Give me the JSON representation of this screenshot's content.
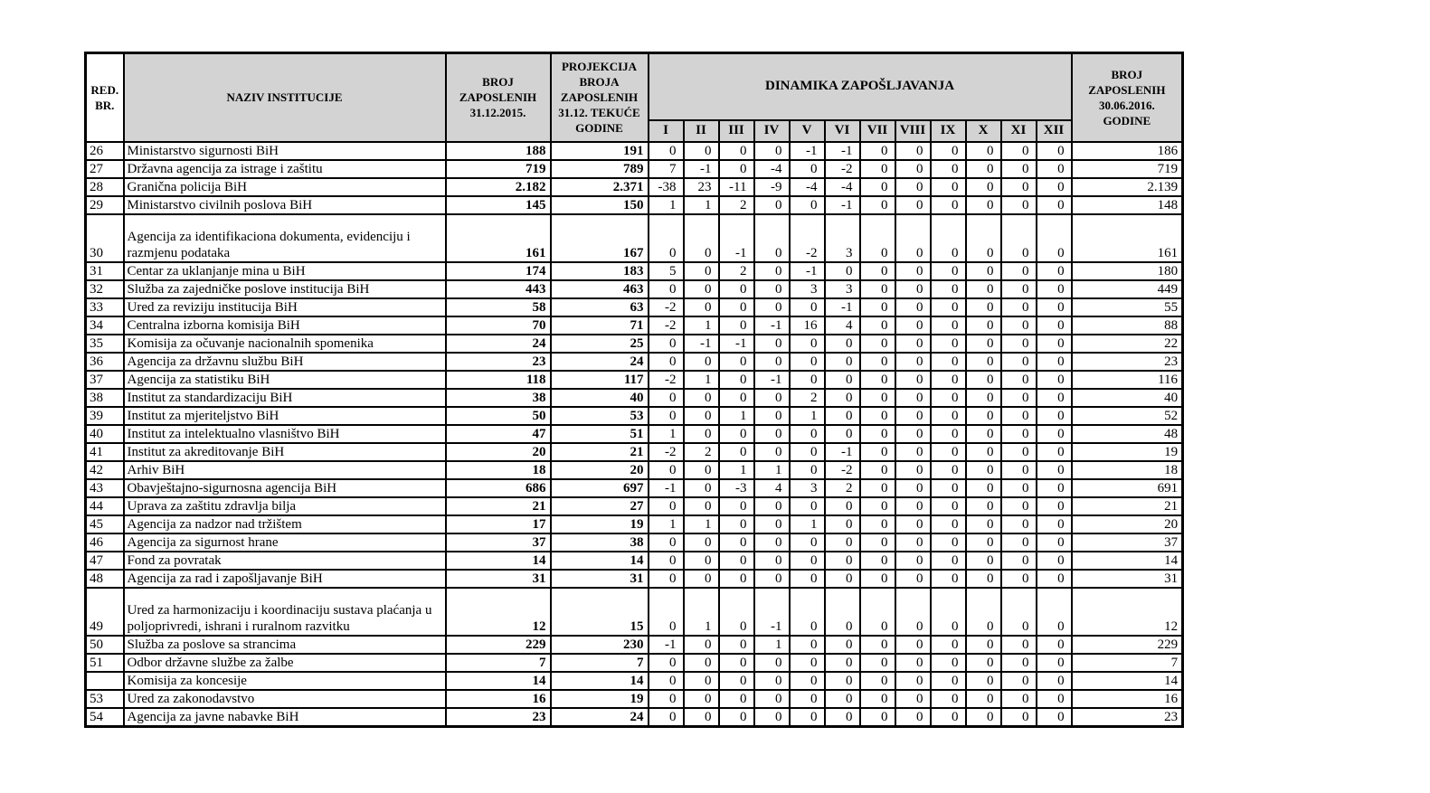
{
  "table": {
    "headers": {
      "red_br": "RED.\nBR.",
      "naziv": "NAZIV INSTITUCIJE",
      "broj_zaposlenih_2015": "BROJ\nZAPOSLENIH\n31.12.2015.",
      "projekcija": "PROJEKCIJA\nBROJA\nZAPOSLENIH\n31.12. TEKUĆE\nGODINE",
      "dinamika": "DINAMIKA ZAPOŠLJAVANJA",
      "months": [
        "I",
        "II",
        "III",
        "IV",
        "V",
        "VI",
        "VII",
        "VIII",
        "IX",
        "X",
        "XI",
        "XII"
      ],
      "broj_zaposlenih_2016": "BROJ\nZAPOSLENIH\n30.06.2016.\nGODINE"
    },
    "rows": [
      {
        "br": "26",
        "naziv": "Ministarstvo sigurnosti BiH",
        "zaposleni_2015": "188",
        "projekcija": "191",
        "mjeseci": [
          "0",
          "0",
          "0",
          "0",
          "-1",
          "-1",
          "0",
          "0",
          "0",
          "0",
          "0",
          "0"
        ],
        "zaposleni_3006": "186"
      },
      {
        "br": "27",
        "naziv": "Državna agencija za istrage i zaštitu",
        "zaposleni_2015": "719",
        "projekcija": "789",
        "mjeseci": [
          "7",
          "-1",
          "0",
          "-4",
          "0",
          "-2",
          "0",
          "0",
          "0",
          "0",
          "0",
          "0"
        ],
        "zaposleni_3006": "719"
      },
      {
        "br": "28",
        "naziv": "Granična policija BiH",
        "zaposleni_2015": "2.182",
        "projekcija": "2.371",
        "mjeseci": [
          "-38",
          "23",
          "-11",
          "-9",
          "-4",
          "-4",
          "0",
          "0",
          "0",
          "0",
          "0",
          "0"
        ],
        "zaposleni_3006": "2.139"
      },
      {
        "br": "29",
        "naziv": "Ministarstvo civilnih poslova BiH",
        "zaposleni_2015": "145",
        "projekcija": "150",
        "mjeseci": [
          "1",
          "1",
          "2",
          "0",
          "0",
          "-1",
          "0",
          "0",
          "0",
          "0",
          "0",
          "0"
        ],
        "zaposleni_3006": "148"
      },
      {
        "br": "30",
        "naziv": "Agencija za identifikaciona dokumenta, evidenciju i razmjenu podataka",
        "zaposleni_2015": "161",
        "projekcija": "167",
        "mjeseci": [
          "0",
          "0",
          "-1",
          "0",
          "-2",
          "3",
          "0",
          "0",
          "0",
          "0",
          "0",
          "0"
        ],
        "zaposleni_3006": "161"
      },
      {
        "br": "31",
        "naziv": "Centar za uklanjanje mina u BiH",
        "zaposleni_2015": "174",
        "projekcija": "183",
        "mjeseci": [
          "5",
          "0",
          "2",
          "0",
          "-1",
          "0",
          "0",
          "0",
          "0",
          "0",
          "0",
          "0"
        ],
        "zaposleni_3006": "180"
      },
      {
        "br": "32",
        "naziv": "Služba za zajedničke poslove institucija BiH",
        "zaposleni_2015": "443",
        "projekcija": "463",
        "mjeseci": [
          "0",
          "0",
          "0",
          "0",
          "3",
          "3",
          "0",
          "0",
          "0",
          "0",
          "0",
          "0"
        ],
        "zaposleni_3006": "449"
      },
      {
        "br": "33",
        "naziv": "Ured za reviziju institucija BiH",
        "zaposleni_2015": "58",
        "projekcija": "63",
        "mjeseci": [
          "-2",
          "0",
          "0",
          "0",
          "0",
          "-1",
          "0",
          "0",
          "0",
          "0",
          "0",
          "0"
        ],
        "zaposleni_3006": "55"
      },
      {
        "br": "34",
        "naziv": "Centralna izborna komisija BiH",
        "zaposleni_2015": "70",
        "projekcija": "71",
        "mjeseci": [
          "-2",
          "1",
          "0",
          "-1",
          "16",
          "4",
          "0",
          "0",
          "0",
          "0",
          "0",
          "0"
        ],
        "zaposleni_3006": "88"
      },
      {
        "br": "35",
        "naziv": "Komisija za očuvanje nacionalnih spomenika",
        "zaposleni_2015": "24",
        "projekcija": "25",
        "mjeseci": [
          "0",
          "-1",
          "-1",
          "0",
          "0",
          "0",
          "0",
          "0",
          "0",
          "0",
          "0",
          "0"
        ],
        "zaposleni_3006": "22"
      },
      {
        "br": "36",
        "naziv": "Agencija za državnu službu BiH",
        "zaposleni_2015": "23",
        "projekcija": "24",
        "mjeseci": [
          "0",
          "0",
          "0",
          "0",
          "0",
          "0",
          "0",
          "0",
          "0",
          "0",
          "0",
          "0"
        ],
        "zaposleni_3006": "23"
      },
      {
        "br": "37",
        "naziv": "Agencija za statistiku BiH",
        "zaposleni_2015": "118",
        "projekcija": "117",
        "mjeseci": [
          "-2",
          "1",
          "0",
          "-1",
          "0",
          "0",
          "0",
          "0",
          "0",
          "0",
          "0",
          "0"
        ],
        "zaposleni_3006": "116"
      },
      {
        "br": "38",
        "naziv": "Institut za standardizaciju BiH",
        "zaposleni_2015": "38",
        "projekcija": "40",
        "mjeseci": [
          "0",
          "0",
          "0",
          "0",
          "2",
          "0",
          "0",
          "0",
          "0",
          "0",
          "0",
          "0"
        ],
        "zaposleni_3006": "40"
      },
      {
        "br": "39",
        "naziv": "Institut za mjeriteljstvo BiH",
        "zaposleni_2015": "50",
        "projekcija": "53",
        "mjeseci": [
          "0",
          "0",
          "1",
          "0",
          "1",
          "0",
          "0",
          "0",
          "0",
          "0",
          "0",
          "0"
        ],
        "zaposleni_3006": "52"
      },
      {
        "br": "40",
        "naziv": "Institut za intelektualno vlasništvo BiH",
        "zaposleni_2015": "47",
        "projekcija": "51",
        "mjeseci": [
          "1",
          "0",
          "0",
          "0",
          "0",
          "0",
          "0",
          "0",
          "0",
          "0",
          "0",
          "0"
        ],
        "zaposleni_3006": "48"
      },
      {
        "br": "41",
        "naziv": "Institut za akreditovanje BiH",
        "zaposleni_2015": "20",
        "projekcija": "21",
        "mjeseci": [
          "-2",
          "2",
          "0",
          "0",
          "0",
          "-1",
          "0",
          "0",
          "0",
          "0",
          "0",
          "0"
        ],
        "zaposleni_3006": "19"
      },
      {
        "br": "42",
        "naziv": "Arhiv BiH",
        "zaposleni_2015": "18",
        "projekcija": "20",
        "mjeseci": [
          "0",
          "0",
          "1",
          "1",
          "0",
          "-2",
          "0",
          "0",
          "0",
          "0",
          "0",
          "0"
        ],
        "zaposleni_3006": "18"
      },
      {
        "br": "43",
        "naziv": "Obavještajno-sigurnosna agencija BiH",
        "zaposleni_2015": "686",
        "projekcija": "697",
        "mjeseci": [
          "-1",
          "0",
          "-3",
          "4",
          "3",
          "2",
          "0",
          "0",
          "0",
          "0",
          "0",
          "0"
        ],
        "zaposleni_3006": "691"
      },
      {
        "br": "44",
        "naziv": "Uprava za zaštitu zdravlja bilja",
        "zaposleni_2015": "21",
        "projekcija": "27",
        "mjeseci": [
          "0",
          "0",
          "0",
          "0",
          "0",
          "0",
          "0",
          "0",
          "0",
          "0",
          "0",
          "0"
        ],
        "zaposleni_3006": "21"
      },
      {
        "br": "45",
        "naziv": "Agencija za nadzor nad tržištem",
        "zaposleni_2015": "17",
        "projekcija": "19",
        "mjeseci": [
          "1",
          "1",
          "0",
          "0",
          "1",
          "0",
          "0",
          "0",
          "0",
          "0",
          "0",
          "0"
        ],
        "zaposleni_3006": "20"
      },
      {
        "br": "46",
        "naziv": "Agencija za sigurnost hrane",
        "zaposleni_2015": "37",
        "projekcija": "38",
        "mjeseci": [
          "0",
          "0",
          "0",
          "0",
          "0",
          "0",
          "0",
          "0",
          "0",
          "0",
          "0",
          "0"
        ],
        "zaposleni_3006": "37"
      },
      {
        "br": "47",
        "naziv": "Fond za povratak",
        "zaposleni_2015": "14",
        "projekcija": "14",
        "mjeseci": [
          "0",
          "0",
          "0",
          "0",
          "0",
          "0",
          "0",
          "0",
          "0",
          "0",
          "0",
          "0"
        ],
        "zaposleni_3006": "14"
      },
      {
        "br": "48",
        "naziv": "Agencija za rad i zapošljavanje BiH",
        "zaposleni_2015": "31",
        "projekcija": "31",
        "mjeseci": [
          "0",
          "0",
          "0",
          "0",
          "0",
          "0",
          "0",
          "0",
          "0",
          "0",
          "0",
          "0"
        ],
        "zaposleni_3006": "31"
      },
      {
        "br": "49",
        "naziv": "Ured za harmonizaciju i koordinaciju sustava plaćanja u poljoprivredi, ishrani i ruralnom razvitku",
        "zaposleni_2015": "12",
        "projekcija": "15",
        "mjeseci": [
          "0",
          "1",
          "0",
          "-1",
          "0",
          "0",
          "0",
          "0",
          "0",
          "0",
          "0",
          "0"
        ],
        "zaposleni_3006": "12"
      },
      {
        "br": "50",
        "naziv": "Služba za poslove sa strancima",
        "zaposleni_2015": "229",
        "projekcija": "230",
        "mjeseci": [
          "-1",
          "0",
          "0",
          "1",
          "0",
          "0",
          "0",
          "0",
          "0",
          "0",
          "0",
          "0"
        ],
        "zaposleni_3006": "229"
      },
      {
        "br": "51",
        "naziv": "Odbor državne službe za žalbe",
        "zaposleni_2015": "7",
        "projekcija": "7",
        "mjeseci": [
          "0",
          "0",
          "0",
          "0",
          "0",
          "0",
          "0",
          "0",
          "0",
          "0",
          "0",
          "0"
        ],
        "zaposleni_3006": "7"
      },
      {
        "br": "",
        "naziv": "Komisija za koncesije",
        "zaposleni_2015": "14",
        "projekcija": "14",
        "mjeseci": [
          "0",
          "0",
          "0",
          "0",
          "0",
          "0",
          "0",
          "0",
          "0",
          "0",
          "0",
          "0"
        ],
        "zaposleni_3006": "14"
      },
      {
        "br": "53",
        "naziv": "Ured za zakonodavstvo",
        "zaposleni_2015": "16",
        "projekcija": "19",
        "mjeseci": [
          "0",
          "0",
          "0",
          "0",
          "0",
          "0",
          "0",
          "0",
          "0",
          "0",
          "0",
          "0"
        ],
        "zaposleni_3006": "16"
      },
      {
        "br": "54",
        "naziv": "Agencija za javne nabavke BiH",
        "zaposleni_2015": "23",
        "projekcija": "24",
        "mjeseci": [
          "0",
          "0",
          "0",
          "0",
          "0",
          "0",
          "0",
          "0",
          "0",
          "0",
          "0",
          "0"
        ],
        "zaposleni_3006": "23"
      }
    ]
  }
}
